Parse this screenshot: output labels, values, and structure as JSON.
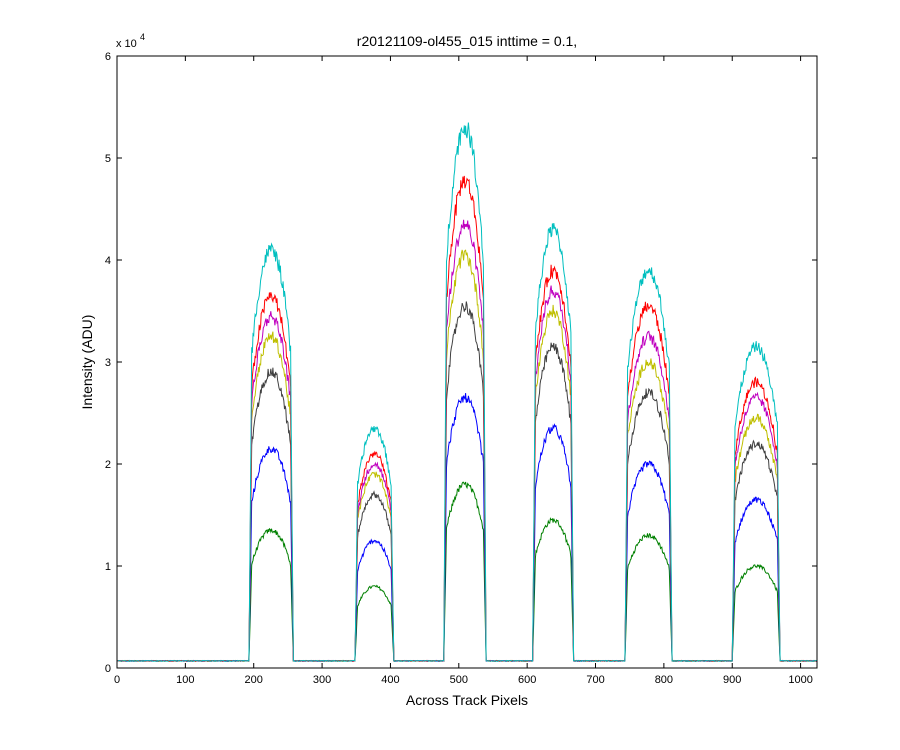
{
  "chart_data": {
    "type": "line",
    "title": "r20121109-ol455_015 inttime = 0.1,",
    "xlabel": "Across Track Pixels",
    "ylabel": "Intensity (ADU)",
    "y_multiplier_label": "x 10",
    "y_multiplier_exponent": "4",
    "xlim": [
      0,
      1024
    ],
    "ylim": [
      0,
      60000
    ],
    "x_ticks": [
      0,
      100,
      200,
      300,
      400,
      500,
      600,
      700,
      800,
      900,
      1000
    ],
    "y_ticks": [
      0,
      1,
      2,
      3,
      4,
      5,
      6
    ],
    "grid": false,
    "baseline": 700,
    "segments": [
      {
        "start": 193,
        "end": 258
      },
      {
        "start": 348,
        "end": 405
      },
      {
        "start": 478,
        "end": 540
      },
      {
        "start": 608,
        "end": 668
      },
      {
        "start": 743,
        "end": 812
      },
      {
        "start": 900,
        "end": 970
      }
    ],
    "series": [
      {
        "color": "#00BFBF",
        "peaks": [
          41000,
          23500,
          53000,
          43000,
          39000,
          31500
        ]
      },
      {
        "color": "#FF0000",
        "peaks": [
          36500,
          21000,
          47800,
          39000,
          35500,
          28000
        ]
      },
      {
        "color": "#BF00BF",
        "peaks": [
          34500,
          20000,
          43500,
          37000,
          32500,
          26500
        ]
      },
      {
        "color": "#BFBF00",
        "peaks": [
          32500,
          19000,
          40500,
          35000,
          30000,
          24500
        ]
      },
      {
        "color": "#404040",
        "peaks": [
          29000,
          17000,
          35500,
          31500,
          27000,
          22000
        ]
      },
      {
        "color": "#0000FF",
        "peaks": [
          21500,
          12500,
          26500,
          23500,
          20000,
          16500
        ]
      },
      {
        "color": "#008000",
        "peaks": [
          13500,
          8000,
          18000,
          14500,
          13000,
          10000
        ]
      }
    ]
  }
}
